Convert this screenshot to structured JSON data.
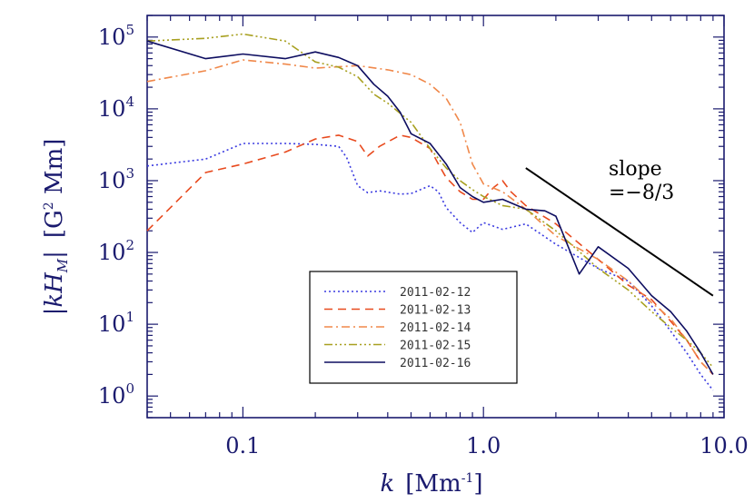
{
  "chart_data": {
    "type": "line",
    "xscale": "log",
    "yscale": "log",
    "xlim": [
      0.04,
      10.0
    ],
    "ylim": [
      0.5,
      200000
    ],
    "xlabel": {
      "prefix": "k",
      "text": "[Mm",
      "exp": "-1",
      "close": "]"
    },
    "ylabel": {
      "prefix": "|kH",
      "sub": "M",
      "close": "|",
      "units": "[G",
      "exp": "2",
      "tail": " Mm]"
    },
    "x_ticks": [
      {
        "value": 0.1,
        "label": "0.1"
      },
      {
        "value": 1.0,
        "label": "1.0"
      },
      {
        "value": 10.0,
        "label": "10.0"
      }
    ],
    "y_ticks": [
      {
        "value": 1,
        "base": "10",
        "exp": "0"
      },
      {
        "value": 10,
        "base": "10",
        "exp": "1"
      },
      {
        "value": 100,
        "base": "10",
        "exp": "2"
      },
      {
        "value": 1000,
        "base": "10",
        "exp": "3"
      },
      {
        "value": 10000,
        "base": "10",
        "exp": "4"
      },
      {
        "value": 100000,
        "base": "10",
        "exp": "5"
      }
    ],
    "legend_position": "lower-center",
    "series": [
      {
        "name": "2011-02-12",
        "color": "#3a3ae0",
        "dash": "2,3",
        "points": [
          [
            0.04,
            1600
          ],
          [
            0.07,
            2000
          ],
          [
            0.1,
            3300
          ],
          [
            0.15,
            3300
          ],
          [
            0.2,
            3200
          ],
          [
            0.25,
            3000
          ],
          [
            0.27,
            2100
          ],
          [
            0.3,
            850
          ],
          [
            0.33,
            680
          ],
          [
            0.37,
            720
          ],
          [
            0.45,
            650
          ],
          [
            0.5,
            660
          ],
          [
            0.6,
            850
          ],
          [
            0.65,
            700
          ],
          [
            0.7,
            420
          ],
          [
            0.8,
            260
          ],
          [
            0.9,
            190
          ],
          [
            1.0,
            260
          ],
          [
            1.2,
            210
          ],
          [
            1.5,
            250
          ],
          [
            2,
            130
          ],
          [
            3,
            60
          ],
          [
            4,
            40
          ],
          [
            5,
            18
          ],
          [
            6,
            8
          ],
          [
            7,
            4
          ],
          [
            8,
            2
          ],
          [
            9,
            1.2
          ]
        ]
      },
      {
        "name": "2011-02-13",
        "color": "#e84a1e",
        "dash": "9,6",
        "points": [
          [
            0.04,
            200
          ],
          [
            0.07,
            1300
          ],
          [
            0.1,
            1700
          ],
          [
            0.15,
            2500
          ],
          [
            0.2,
            3800
          ],
          [
            0.25,
            4300
          ],
          [
            0.3,
            3500
          ],
          [
            0.33,
            2200
          ],
          [
            0.37,
            3000
          ],
          [
            0.45,
            4300
          ],
          [
            0.5,
            4000
          ],
          [
            0.6,
            2800
          ],
          [
            0.65,
            1700
          ],
          [
            0.7,
            1100
          ],
          [
            0.8,
            700
          ],
          [
            0.9,
            550
          ],
          [
            1.0,
            550
          ],
          [
            1.1,
            800
          ],
          [
            1.2,
            1000
          ],
          [
            1.3,
            700
          ],
          [
            1.5,
            450
          ],
          [
            2,
            250
          ],
          [
            3,
            80
          ],
          [
            4,
            35
          ],
          [
            5,
            22
          ],
          [
            6,
            11
          ],
          [
            7,
            6
          ],
          [
            8,
            3
          ],
          [
            9,
            2
          ]
        ]
      },
      {
        "name": "2011-02-14",
        "color": "#f0884a",
        "dash": "9,4,2,4",
        "points": [
          [
            0.04,
            24000
          ],
          [
            0.07,
            34000
          ],
          [
            0.1,
            48000
          ],
          [
            0.15,
            42000
          ],
          [
            0.2,
            37000
          ],
          [
            0.3,
            40000
          ],
          [
            0.4,
            35000
          ],
          [
            0.5,
            30000
          ],
          [
            0.6,
            22000
          ],
          [
            0.7,
            14000
          ],
          [
            0.8,
            6500
          ],
          [
            0.9,
            1700
          ],
          [
            1.0,
            900
          ],
          [
            1.2,
            700
          ],
          [
            1.5,
            400
          ],
          [
            2,
            170
          ],
          [
            3,
            80
          ],
          [
            4,
            40
          ],
          [
            5,
            20
          ],
          [
            6,
            12
          ],
          [
            7,
            6
          ],
          [
            8,
            3
          ],
          [
            9,
            2
          ]
        ]
      },
      {
        "name": "2011-02-15",
        "color": "#a8a020",
        "dash": "9,3,2,3,2,3,2,3",
        "points": [
          [
            0.04,
            88000
          ],
          [
            0.07,
            96000
          ],
          [
            0.1,
            110000
          ],
          [
            0.15,
            88000
          ],
          [
            0.2,
            45000
          ],
          [
            0.25,
            38000
          ],
          [
            0.3,
            28000
          ],
          [
            0.35,
            16000
          ],
          [
            0.4,
            12000
          ],
          [
            0.5,
            6500
          ],
          [
            0.6,
            2800
          ],
          [
            0.7,
            1500
          ],
          [
            0.8,
            1000
          ],
          [
            0.9,
            750
          ],
          [
            1.0,
            600
          ],
          [
            1.2,
            450
          ],
          [
            1.5,
            400
          ],
          [
            2,
            200
          ],
          [
            3,
            60
          ],
          [
            4,
            30
          ],
          [
            5,
            15
          ],
          [
            6,
            9
          ],
          [
            7,
            6
          ],
          [
            8,
            4
          ],
          [
            9,
            2.5
          ]
        ]
      },
      {
        "name": "2011-02-16",
        "color": "#0d0d60",
        "dash": "",
        "points": [
          [
            0.04,
            88000
          ],
          [
            0.07,
            50000
          ],
          [
            0.1,
            58000
          ],
          [
            0.15,
            50000
          ],
          [
            0.2,
            62000
          ],
          [
            0.25,
            52000
          ],
          [
            0.3,
            40000
          ],
          [
            0.35,
            22000
          ],
          [
            0.4,
            15000
          ],
          [
            0.45,
            9000
          ],
          [
            0.5,
            4500
          ],
          [
            0.6,
            3300
          ],
          [
            0.7,
            1700
          ],
          [
            0.8,
            800
          ],
          [
            0.9,
            600
          ],
          [
            1.0,
            500
          ],
          [
            1.2,
            550
          ],
          [
            1.5,
            400
          ],
          [
            1.8,
            380
          ],
          [
            2,
            320
          ],
          [
            2.5,
            50
          ],
          [
            3,
            120
          ],
          [
            4,
            60
          ],
          [
            5,
            25
          ],
          [
            6,
            15
          ],
          [
            7,
            8
          ],
          [
            8,
            4
          ],
          [
            9,
            2
          ]
        ]
      }
    ],
    "reference_line": {
      "label_line1": "slope",
      "label_line2": "=−8/3",
      "x": [
        1.5,
        9.0
      ],
      "y": [
        1500,
        25
      ],
      "color": "#000000"
    }
  }
}
